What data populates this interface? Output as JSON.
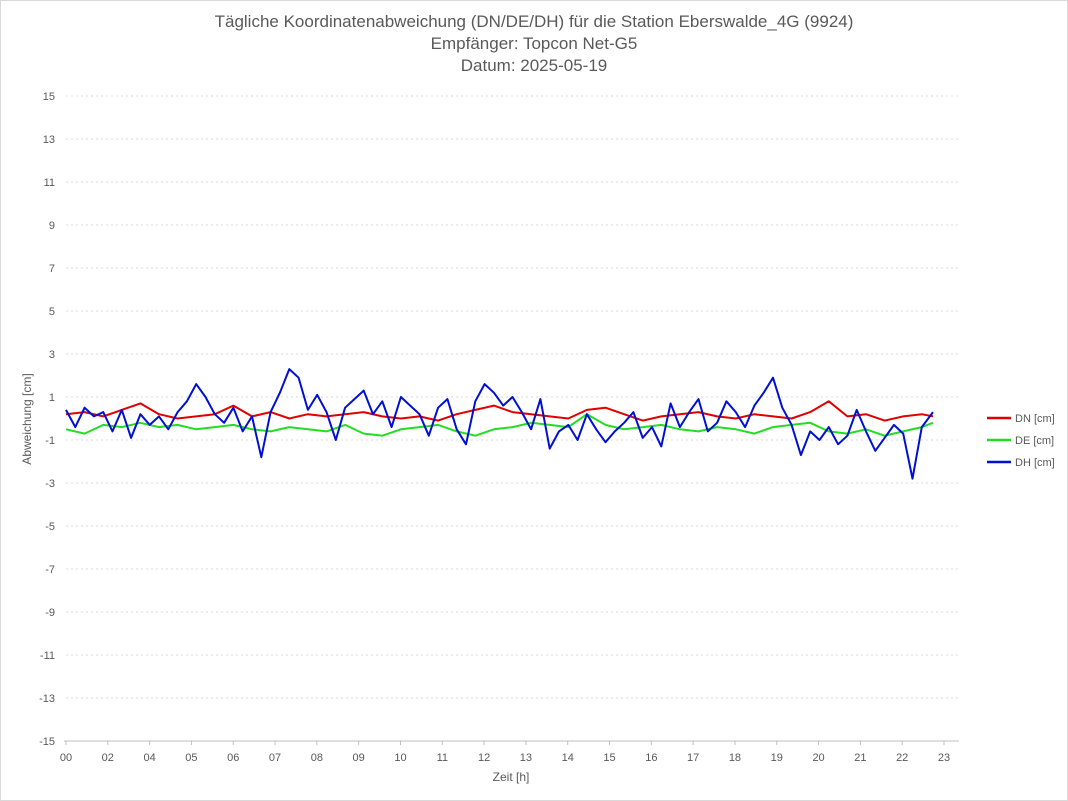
{
  "chart_data": {
    "type": "line",
    "title_lines": [
      "Tägliche Koordinatenabweichung (DN/DE/DH) für die Station Eberswalde_4G (9924)",
      "Empfänger: Topcon Net-G5",
      "Datum: 2025-05-19"
    ],
    "xlabel": "Zeit [h]",
    "ylabel": "Abweichung [cm]",
    "xlim": [
      0,
      24
    ],
    "ylim": [
      -15,
      15
    ],
    "x_tick_labels": [
      "00",
      "02",
      "04",
      "05",
      "06",
      "07",
      "08",
      "09",
      "10",
      "11",
      "12",
      "13",
      "14",
      "15",
      "16",
      "17",
      "18",
      "19",
      "20",
      "21",
      "22",
      "23"
    ],
    "y_ticks": [
      15,
      13,
      11,
      9,
      7,
      5,
      3,
      1,
      -1,
      -3,
      -5,
      -7,
      -9,
      -11,
      -13,
      -15
    ],
    "grid": true,
    "legend_position": "right",
    "series": [
      {
        "name": "DN [cm]",
        "color": "#e00000",
        "x": [
          0,
          0.5,
          1,
          1.5,
          2,
          2.5,
          3,
          3.5,
          4,
          4.5,
          5,
          5.5,
          6,
          6.5,
          7,
          7.5,
          8,
          8.5,
          9,
          9.5,
          10,
          10.5,
          11,
          11.5,
          12,
          12.5,
          13,
          13.5,
          14,
          14.5,
          15,
          15.5,
          16,
          16.5,
          17,
          17.5,
          18,
          18.5,
          19,
          19.5,
          20,
          20.5,
          21,
          21.5,
          22,
          22.5,
          23,
          23.3
        ],
        "y": [
          0.2,
          0.3,
          0.1,
          0.4,
          0.7,
          0.2,
          0.0,
          0.1,
          0.2,
          0.6,
          0.1,
          0.3,
          0.0,
          0.2,
          0.1,
          0.2,
          0.3,
          0.1,
          0.0,
          0.1,
          -0.1,
          0.2,
          0.4,
          0.6,
          0.3,
          0.2,
          0.1,
          0.0,
          0.4,
          0.5,
          0.2,
          -0.1,
          0.1,
          0.2,
          0.3,
          0.1,
          0.0,
          0.2,
          0.1,
          0.0,
          0.3,
          0.8,
          0.1,
          0.2,
          -0.1,
          0.1,
          0.2,
          0.1
        ]
      },
      {
        "name": "DE [cm]",
        "color": "#22dd22",
        "x": [
          0,
          0.5,
          1,
          1.5,
          2,
          2.5,
          3,
          3.5,
          4,
          4.5,
          5,
          5.5,
          6,
          6.5,
          7,
          7.5,
          8,
          8.5,
          9,
          9.5,
          10,
          10.5,
          11,
          11.5,
          12,
          12.5,
          13,
          13.5,
          14,
          14.5,
          15,
          15.5,
          16,
          16.5,
          17,
          17.5,
          18,
          18.5,
          19,
          19.5,
          20,
          20.5,
          21,
          21.5,
          22,
          22.5,
          23,
          23.3
        ],
        "y": [
          -0.5,
          -0.7,
          -0.3,
          -0.4,
          -0.2,
          -0.4,
          -0.3,
          -0.5,
          -0.4,
          -0.3,
          -0.5,
          -0.6,
          -0.4,
          -0.5,
          -0.6,
          -0.3,
          -0.7,
          -0.8,
          -0.5,
          -0.4,
          -0.3,
          -0.6,
          -0.8,
          -0.5,
          -0.4,
          -0.2,
          -0.3,
          -0.4,
          0.2,
          -0.3,
          -0.5,
          -0.4,
          -0.3,
          -0.5,
          -0.6,
          -0.4,
          -0.5,
          -0.7,
          -0.4,
          -0.3,
          -0.2,
          -0.6,
          -0.7,
          -0.5,
          -0.8,
          -0.6,
          -0.4,
          -0.2
        ]
      },
      {
        "name": "DH [cm]",
        "color": "#0010d0",
        "x": [
          0,
          0.25,
          0.5,
          0.75,
          1,
          1.25,
          1.5,
          1.75,
          2,
          2.25,
          2.5,
          2.75,
          3,
          3.25,
          3.5,
          3.75,
          4,
          4.25,
          4.5,
          4.75,
          5,
          5.25,
          5.5,
          5.75,
          6,
          6.25,
          6.5,
          6.75,
          7,
          7.25,
          7.5,
          7.75,
          8,
          8.25,
          8.5,
          8.75,
          9,
          9.25,
          9.5,
          9.75,
          10,
          10.25,
          10.5,
          10.75,
          11,
          11.25,
          11.5,
          11.75,
          12,
          12.25,
          12.5,
          12.75,
          13,
          13.25,
          13.5,
          13.75,
          14,
          14.25,
          14.5,
          14.75,
          15,
          15.25,
          15.5,
          15.75,
          16,
          16.25,
          16.5,
          16.75,
          17,
          17.25,
          17.5,
          17.75,
          18,
          18.25,
          18.5,
          18.75,
          19,
          19.25,
          19.5,
          19.75,
          20,
          20.25,
          20.5,
          20.75,
          21,
          21.25,
          21.5,
          21.75,
          22,
          22.25,
          22.5,
          22.75,
          23,
          23.3
        ],
        "y": [
          0.4,
          -0.4,
          0.5,
          0.1,
          0.3,
          -0.6,
          0.4,
          -0.9,
          0.2,
          -0.3,
          0.1,
          -0.5,
          0.3,
          0.8,
          1.6,
          1.0,
          0.2,
          -0.2,
          0.5,
          -0.6,
          0.1,
          -1.8,
          0.3,
          1.2,
          2.3,
          1.9,
          0.4,
          1.1,
          0.3,
          -1.0,
          0.5,
          0.9,
          1.3,
          0.2,
          0.8,
          -0.4,
          1.0,
          0.6,
          0.2,
          -0.8,
          0.5,
          0.9,
          -0.5,
          -1.2,
          0.8,
          1.6,
          1.2,
          0.6,
          1.0,
          0.3,
          -0.5,
          0.9,
          -1.4,
          -0.6,
          -0.3,
          -1.0,
          0.2,
          -0.5,
          -1.1,
          -0.6,
          -0.2,
          0.3,
          -0.9,
          -0.4,
          -1.3,
          0.7,
          -0.4,
          0.3,
          0.9,
          -0.6,
          -0.2,
          0.8,
          0.3,
          -0.4,
          0.6,
          1.2,
          1.9,
          0.5,
          -0.3,
          -1.7,
          -0.6,
          -1.0,
          -0.4,
          -1.2,
          -0.8,
          0.4,
          -0.6,
          -1.5,
          -0.9,
          -0.3,
          -0.7,
          -2.8,
          -0.4,
          0.3
        ]
      }
    ]
  }
}
